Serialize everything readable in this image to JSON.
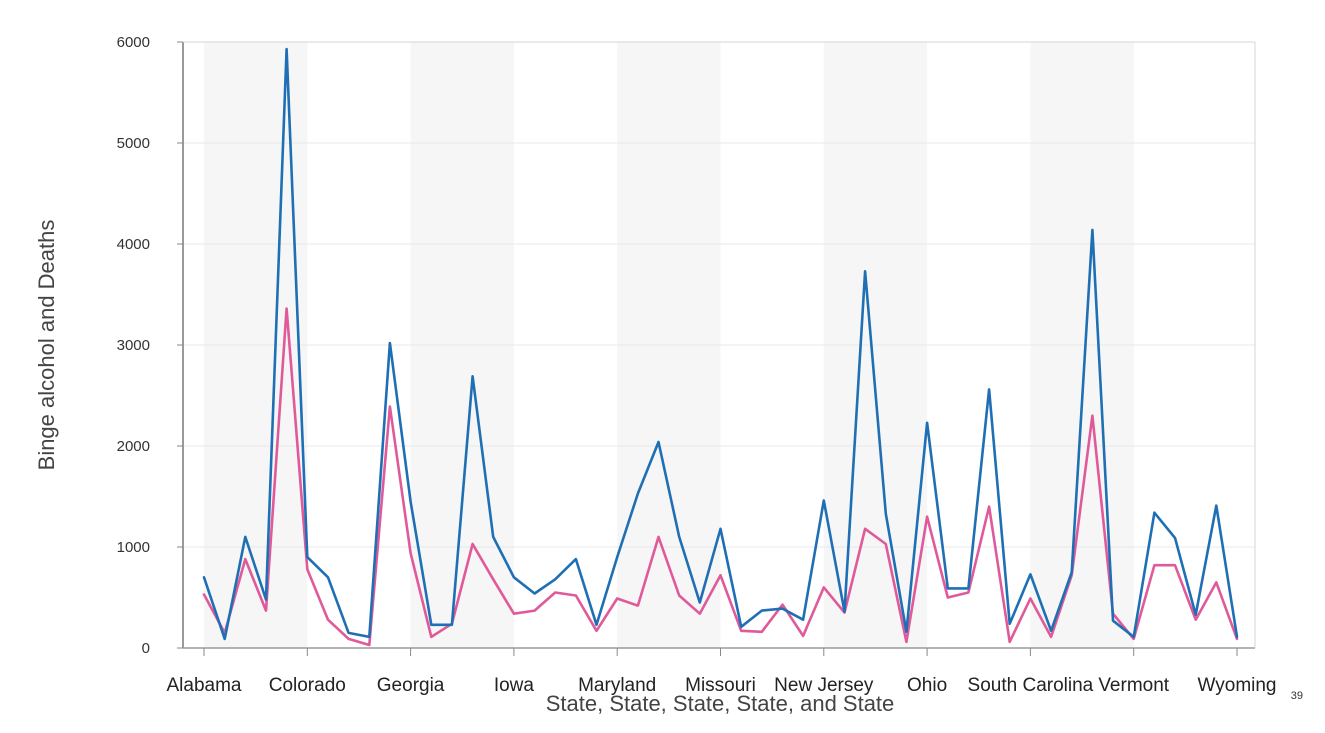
{
  "chart_data": {
    "type": "line",
    "xlabel": "State, State, State, State, and State",
    "ylabel": "Binge alcohol and Deaths",
    "ylim": [
      0,
      6000
    ],
    "yticks": [
      "0",
      "1000",
      "2000",
      "3000",
      "4000",
      "5000",
      "6000"
    ],
    "xtick_labels": [
      "Alabama",
      "Colorado",
      "Georgia",
      "Iowa",
      "Maryland",
      "Missouri",
      "New Jersey",
      "Ohio",
      "South Carolina",
      "Vermont",
      "Wyoming"
    ],
    "xtick_positions": [
      0,
      5,
      10,
      15,
      20,
      25,
      30,
      35,
      40,
      45,
      50
    ],
    "grid": true,
    "series": [
      {
        "color": "#1f6fb4",
        "values": [
          700,
          90,
          1100,
          480,
          5930,
          900,
          700,
          150,
          110,
          3020,
          1450,
          230,
          230,
          2690,
          1100,
          700,
          540,
          680,
          880,
          230,
          900,
          1530,
          2040,
          1100,
          450,
          1180,
          210,
          370,
          390,
          280,
          1460,
          360,
          3730,
          1330,
          160,
          2230,
          590,
          590,
          2560,
          240,
          730,
          170,
          750,
          4140,
          270,
          110,
          1340,
          1090,
          330,
          1410,
          110
        ]
      },
      {
        "color": "#e05a9a",
        "values": [
          530,
          150,
          880,
          370,
          3360,
          780,
          280,
          90,
          30,
          2390,
          940,
          110,
          240,
          1030,
          680,
          340,
          370,
          550,
          520,
          170,
          490,
          420,
          1100,
          520,
          340,
          720,
          170,
          160,
          430,
          120,
          600,
          350,
          1180,
          1030,
          60,
          1300,
          500,
          550,
          1400,
          60,
          490,
          110,
          720,
          2300,
          340,
          90,
          820,
          820,
          280,
          650,
          90
        ]
      }
    ]
  },
  "page_number": "39"
}
